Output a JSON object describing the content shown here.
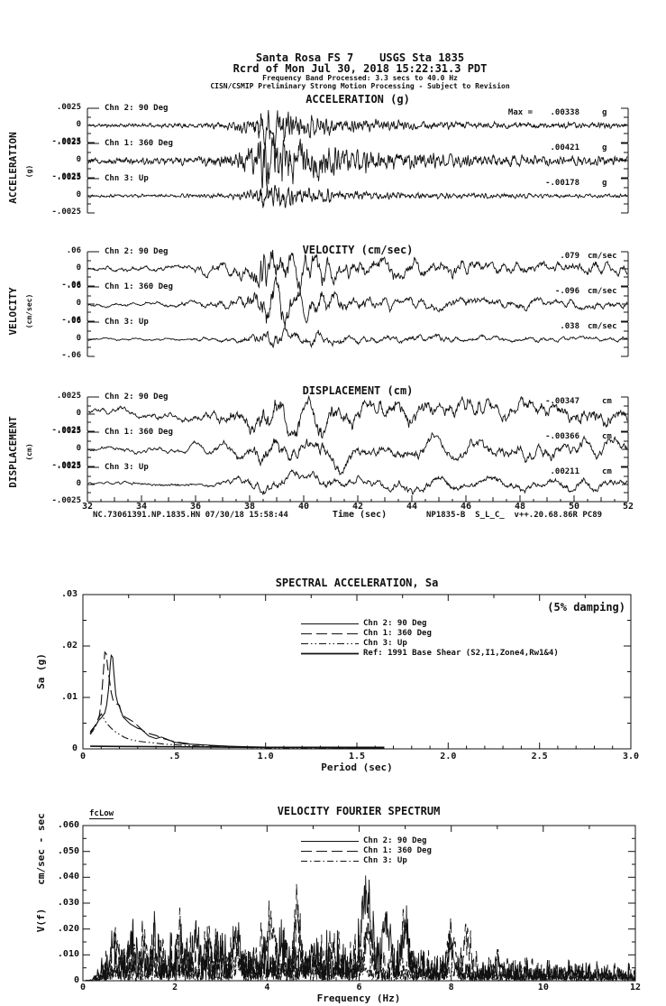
{
  "colors": {
    "ink": "#111111",
    "background": "#ffffff"
  },
  "header": {
    "line1": "Santa Rosa FS 7    USGS Sta 1835",
    "line2": "Rcrd of Mon Jul 30, 2018 15:22:31.3 PDT",
    "line3": "Frequency Band Processed: 3.3 secs to 40.0 Hz",
    "line4": "CISN/CSMIP Preliminary Strong Motion Processing - Subject to Revision"
  },
  "footer": {
    "left": "NC.73061391.NP.1835.HN 07/30/18 15:58:44",
    "right": "NP1835-B  S_L_C_  v++.20.68.86R PC89"
  },
  "chart_data": [
    {
      "id": "acceleration",
      "type": "line",
      "title": "ACCELERATION (g)",
      "side_label": "ACCELERATION",
      "side_units": "(g)",
      "full_scale": 0.0025,
      "x_range": [
        32,
        52
      ],
      "ytick_labels": [
        ".0025",
        "0",
        "-.0025"
      ],
      "channels": [
        {
          "label": "Chn 2: 90 Deg",
          "peak_prefix": "Max =",
          "peak": ".00338",
          "units": "g"
        },
        {
          "label": "Chn 1: 360 Deg",
          "peak": ".00421",
          "units": "g"
        },
        {
          "label": "Chn 3: Up",
          "peak": "-.00178",
          "units": "g"
        }
      ]
    },
    {
      "id": "velocity",
      "type": "line",
      "title": "VELOCITY (cm/sec)",
      "side_label": "VELOCITY",
      "side_units": "(cm/sec)",
      "full_scale": 0.06,
      "x_range": [
        32,
        52
      ],
      "ytick_labels": [
        ".06",
        "0",
        "-.06"
      ],
      "channels": [
        {
          "label": "Chn 2: 90 Deg",
          "peak": ".079",
          "units": "cm/sec"
        },
        {
          "label": "Chn 1: 360 Deg",
          "peak": "-.096",
          "units": "cm/sec"
        },
        {
          "label": "Chn 3: Up",
          "peak": ".038",
          "units": "cm/sec"
        }
      ]
    },
    {
      "id": "displacement",
      "type": "line",
      "title": "DISPLACEMENT (cm)",
      "side_label": "DISPLACEMENT",
      "side_units": "(cm)",
      "full_scale": 0.0025,
      "x_range": [
        32,
        52
      ],
      "xlabel": "Time (sec)",
      "xticks": [
        "32",
        "34",
        "36",
        "38",
        "40",
        "42",
        "44",
        "46",
        "48",
        "50",
        "52"
      ],
      "ytick_labels": [
        ".0025",
        "0",
        "-.0025"
      ],
      "channels": [
        {
          "label": "Chn 2: 90 Deg",
          "peak": "-.00347",
          "units": "cm"
        },
        {
          "label": "Chn 1: 360 Deg",
          "peak": "-.00366",
          "units": "cm"
        },
        {
          "label": "Chn 3: Up",
          "peak": ".00211",
          "units": "cm"
        }
      ]
    },
    {
      "id": "spectral_acceleration",
      "type": "line",
      "title": "SPECTRAL ACCELERATION, Sa",
      "annotation": "(5% damping)",
      "xlabel": "Period (sec)",
      "ylabel": "Sa (g)",
      "xlim": [
        0,
        3.0
      ],
      "ylim": [
        0,
        0.03
      ],
      "xticks": [
        "0",
        ".5",
        "1.0",
        "1.5",
        "2.0",
        "2.5",
        "3.0"
      ],
      "yticks": [
        "0",
        ".01",
        ".02",
        ".03"
      ],
      "series": [
        {
          "name": "Chn 2: 90 Deg",
          "style": "solid",
          "points": [
            [
              0.04,
              0.0033
            ],
            [
              0.055,
              0.004
            ],
            [
              0.07,
              0.0045
            ],
            [
              0.085,
              0.0055
            ],
            [
              0.1,
              0.006
            ],
            [
              0.11,
              0.0065
            ],
            [
              0.12,
              0.007
            ],
            [
              0.13,
              0.0085
            ],
            [
              0.14,
              0.0115
            ],
            [
              0.15,
              0.0165
            ],
            [
              0.155,
              0.0182
            ],
            [
              0.163,
              0.0178
            ],
            [
              0.17,
              0.0145
            ],
            [
              0.18,
              0.0105
            ],
            [
              0.19,
              0.009
            ],
            [
              0.2,
              0.0082
            ],
            [
              0.22,
              0.0062
            ],
            [
              0.24,
              0.0055
            ],
            [
              0.26,
              0.0048
            ],
            [
              0.3,
              0.004
            ],
            [
              0.32,
              0.0038
            ],
            [
              0.36,
              0.0025
            ],
            [
              0.4,
              0.002
            ],
            [
              0.43,
              0.0023
            ],
            [
              0.46,
              0.0019
            ],
            [
              0.5,
              0.0013
            ],
            [
              0.55,
              0.001
            ],
            [
              0.6,
              0.0009
            ],
            [
              0.7,
              0.0007
            ],
            [
              0.8,
              0.0005
            ],
            [
              0.9,
              0.0004
            ],
            [
              1.0,
              0.00035
            ],
            [
              1.1,
              0.0003
            ],
            [
              1.3,
              0.00025
            ],
            [
              1.5,
              0.0002
            ],
            [
              1.65,
              0.0002
            ]
          ]
        },
        {
          "name": "Chn 1: 360 Deg",
          "style": "dash",
          "points": [
            [
              0.04,
              0.003
            ],
            [
              0.06,
              0.0042
            ],
            [
              0.075,
              0.005
            ],
            [
              0.09,
              0.0065
            ],
            [
              0.1,
              0.009
            ],
            [
              0.11,
              0.014
            ],
            [
              0.12,
              0.0188
            ],
            [
              0.128,
              0.0185
            ],
            [
              0.135,
              0.016
            ],
            [
              0.145,
              0.0135
            ],
            [
              0.155,
              0.011
            ],
            [
              0.165,
              0.0095
            ],
            [
              0.18,
              0.0088
            ],
            [
              0.2,
              0.0085
            ],
            [
              0.21,
              0.007
            ],
            [
              0.23,
              0.0062
            ],
            [
              0.25,
              0.0058
            ],
            [
              0.28,
              0.0052
            ],
            [
              0.3,
              0.0045
            ],
            [
              0.33,
              0.0035
            ],
            [
              0.36,
              0.003
            ],
            [
              0.4,
              0.0026
            ],
            [
              0.44,
              0.002
            ],
            [
              0.48,
              0.0016
            ],
            [
              0.52,
              0.0013
            ],
            [
              0.6,
              0.0009
            ],
            [
              0.7,
              0.0006
            ],
            [
              0.8,
              0.00045
            ],
            [
              0.9,
              0.00035
            ],
            [
              1.0,
              0.0003
            ],
            [
              1.2,
              0.00025
            ],
            [
              1.4,
              0.0002
            ],
            [
              1.65,
              0.0002
            ]
          ]
        },
        {
          "name": "Chn 3: Up",
          "style": "dashdotdot",
          "points": [
            [
              0.04,
              0.0028
            ],
            [
              0.055,
              0.0035
            ],
            [
              0.07,
              0.0045
            ],
            [
              0.08,
              0.005
            ],
            [
              0.09,
              0.0062
            ],
            [
              0.1,
              0.0068
            ],
            [
              0.11,
              0.0062
            ],
            [
              0.12,
              0.0055
            ],
            [
              0.13,
              0.005
            ],
            [
              0.15,
              0.0042
            ],
            [
              0.17,
              0.0035
            ],
            [
              0.2,
              0.0028
            ],
            [
              0.23,
              0.0022
            ],
            [
              0.26,
              0.0018
            ],
            [
              0.3,
              0.0015
            ],
            [
              0.35,
              0.0013
            ],
            [
              0.4,
              0.0011
            ],
            [
              0.45,
              0.0009
            ],
            [
              0.5,
              0.0008
            ],
            [
              0.6,
              0.0006
            ],
            [
              0.7,
              0.0004
            ],
            [
              0.85,
              0.0003
            ],
            [
              1.0,
              0.0002
            ],
            [
              1.2,
              0.00015
            ],
            [
              1.5,
              0.0001
            ],
            [
              1.65,
              0.0001
            ]
          ]
        },
        {
          "name": "Ref: 1991 Base Shear (S2,I1,Zone4,Rw1&4)",
          "style": "solid-thick",
          "points": [
            [
              0.04,
              0.0005
            ],
            [
              0.5,
              0.0004
            ],
            [
              1.0,
              0.0003
            ],
            [
              1.65,
              0.0003
            ]
          ]
        }
      ]
    },
    {
      "id": "velocity_fourier_spectrum",
      "type": "line",
      "title": "VELOCITY FOURIER SPECTRUM",
      "corner_label": "fcLow",
      "xlabel": "Frequency (Hz)",
      "ylabel": "V(f)",
      "units_label": "cm/sec - sec",
      "xlim": [
        0,
        12
      ],
      "ylim": [
        0,
        0.06
      ],
      "xticks": [
        "0",
        "2",
        "4",
        "6",
        "8",
        "10",
        "12"
      ],
      "yticks": [
        "0",
        ".010",
        ".020",
        ".030",
        ".040",
        ".050",
        ".060"
      ],
      "series": [
        {
          "name": "Chn 2: 90 Deg",
          "style": "solid",
          "base_amp": 0.012,
          "approx_peaks": [
            [
              0.65,
              0.014,
              0.05
            ],
            [
              1.05,
              0.011,
              0.05
            ],
            [
              1.55,
              0.013,
              0.05
            ],
            [
              2.45,
              0.019,
              0.07
            ],
            [
              3.0,
              0.011,
              0.05
            ],
            [
              3.35,
              0.019,
              0.06
            ],
            [
              4.35,
              0.012,
              0.06
            ],
            [
              5.0,
              0.01,
              0.06
            ],
            [
              6.15,
              0.041,
              0.1
            ],
            [
              6.6,
              0.019,
              0.07
            ],
            [
              7.0,
              0.021,
              0.06
            ],
            [
              8.0,
              0.013,
              0.06
            ],
            [
              10.6,
              0.004,
              0.05
            ]
          ]
        },
        {
          "name": "Chn 1: 360 Deg",
          "style": "dash",
          "base_amp": 0.012,
          "approx_peaks": [
            [
              0.75,
              0.012,
              0.05
            ],
            [
              1.3,
              0.012,
              0.05
            ],
            [
              2.1,
              0.013,
              0.05
            ],
            [
              2.75,
              0.011,
              0.05
            ],
            [
              3.3,
              0.02,
              0.06
            ],
            [
              4.1,
              0.026,
              0.08
            ],
            [
              4.65,
              0.026,
              0.07
            ],
            [
              5.4,
              0.012,
              0.06
            ],
            [
              6.2,
              0.012,
              0.1
            ],
            [
              7.0,
              0.02,
              0.07
            ],
            [
              8.0,
              0.016,
              0.06
            ],
            [
              8.35,
              0.015,
              0.07
            ],
            [
              9.0,
              0.009,
              0.06
            ]
          ]
        },
        {
          "name": "Chn 3: Up",
          "style": "dashdot",
          "base_amp": 0.0085,
          "approx_peaks": [
            [
              0.8,
              0.006,
              0.05
            ],
            [
              2.0,
              0.003,
              0.06
            ],
            [
              3.4,
              0.004,
              0.06
            ],
            [
              5.0,
              0.003,
              0.08
            ],
            [
              6.1,
              0.004,
              0.08
            ],
            [
              8.0,
              0.002,
              0.06
            ]
          ]
        }
      ]
    }
  ]
}
